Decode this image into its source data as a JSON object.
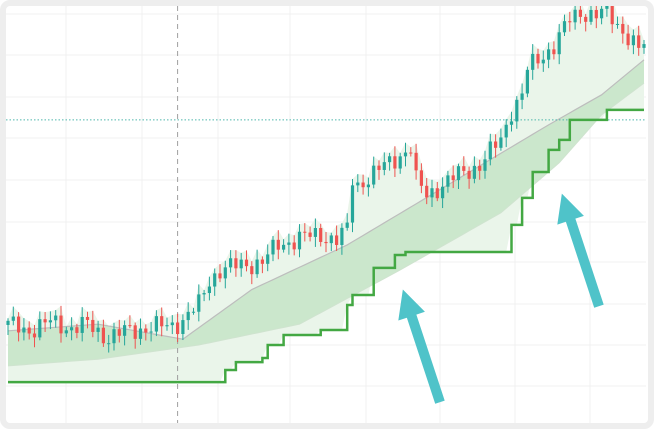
{
  "chart_data": {
    "type": "candlestick",
    "title": "",
    "xlabel": "",
    "ylabel": "",
    "grid": true,
    "ylim": [
      0,
      100
    ],
    "xlim": [
      0,
      120
    ],
    "colors": {
      "up": "#26a69a",
      "down": "#ef5350",
      "stop_line": "#43a843",
      "band_fill": "#c8e6c9",
      "area_fill": "#eaf5ea",
      "band_edge": "#bdbdbd",
      "arrow": "#4fc3c9",
      "level_line": "#4db6ac",
      "crosshair": "#9e9e9e"
    },
    "close_keypoints": [
      [
        0,
        23.5
      ],
      [
        4,
        22.3
      ],
      [
        8,
        24.2
      ],
      [
        12,
        22.8
      ],
      [
        15,
        23.5
      ],
      [
        19,
        20.4
      ],
      [
        23,
        22.3
      ],
      [
        27,
        22.8
      ],
      [
        31,
        23.5
      ],
      [
        33,
        24.7
      ],
      [
        36,
        28.3
      ],
      [
        38,
        34.3
      ],
      [
        40,
        36.7
      ],
      [
        44,
        37.9
      ],
      [
        48,
        38.6
      ],
      [
        51,
        42.7
      ],
      [
        55,
        44.4
      ],
      [
        59,
        45.1
      ],
      [
        62,
        43.9
      ],
      [
        64,
        46.3
      ],
      [
        65,
        58.3
      ],
      [
        66,
        57.1
      ],
      [
        70,
        60.7
      ],
      [
        74,
        64.3
      ],
      [
        76,
        65.9
      ],
      [
        77,
        58
      ],
      [
        79,
        54.7
      ],
      [
        81,
        56.4
      ],
      [
        85,
        59.5
      ],
      [
        89,
        61.9
      ],
      [
        93,
        67.9
      ],
      [
        95,
        75.1
      ],
      [
        97,
        78.7
      ],
      [
        98,
        84.7
      ],
      [
        100,
        87.1
      ],
      [
        103,
        90.6
      ],
      [
        106,
        96.6
      ],
      [
        108,
        98.6
      ],
      [
        111,
        97.8
      ],
      [
        113,
        98.6
      ],
      [
        116,
        94.2
      ],
      [
        119,
        89.4
      ],
      [
        120,
        90.6
      ]
    ],
    "band_upper": [
      [
        0,
        22.1
      ],
      [
        17,
        23.7
      ],
      [
        33,
        20.1
      ],
      [
        46,
        32
      ],
      [
        64,
        42.7
      ],
      [
        83,
        57.1
      ],
      [
        102,
        71.5
      ],
      [
        112,
        78.7
      ],
      [
        120,
        87.1
      ]
    ],
    "band_lower": [
      [
        0,
        13.7
      ],
      [
        17,
        15.3
      ],
      [
        36,
        18.7
      ],
      [
        55,
        23.7
      ],
      [
        74,
        36.7
      ],
      [
        93,
        50.4
      ],
      [
        104,
        62.4
      ],
      [
        112,
        73.9
      ],
      [
        120,
        81.5
      ]
    ],
    "stop_line_steps": [
      [
        0,
        9.8
      ],
      [
        41,
        12.7
      ],
      [
        43,
        14.6
      ],
      [
        48,
        15.6
      ],
      [
        49,
        18.7
      ],
      [
        52,
        21.1
      ],
      [
        59,
        22.3
      ],
      [
        64,
        28.3
      ],
      [
        65,
        30.7
      ],
      [
        69,
        37.2
      ],
      [
        73,
        40.3
      ],
      [
        75,
        41.0
      ],
      [
        95,
        47.5
      ],
      [
        97,
        54.0
      ],
      [
        99,
        60.2
      ],
      [
        102,
        65.5
      ],
      [
        104,
        67.9
      ],
      [
        106,
        72.7
      ],
      [
        113,
        75.1
      ]
    ],
    "level_line": 72.7,
    "crosshair_x": 32,
    "annotations": [
      {
        "type": "arrow",
        "from": [
          81.5,
          5
        ],
        "to": [
          74.5,
          32
        ]
      },
      {
        "type": "arrow",
        "from": [
          111.5,
          28
        ],
        "to": [
          104.5,
          55
        ]
      }
    ]
  }
}
